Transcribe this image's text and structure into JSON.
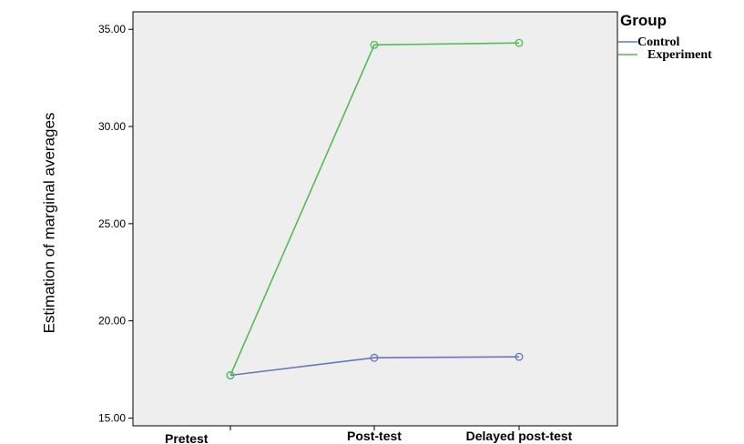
{
  "chart_data": {
    "type": "line",
    "categories": [
      "Pretest",
      "Post-test",
      "Delayed post-test"
    ],
    "ylabel": "Estimation of marginal averages",
    "ylim": [
      14.6,
      35.9
    ],
    "yticks": [
      "15.00",
      "20.00",
      "25.00",
      "30.00",
      "35.00"
    ],
    "ytick_values": [
      15,
      20,
      25,
      30,
      35
    ],
    "grid": false,
    "legend": {
      "title": "Group",
      "placement": "right"
    },
    "series": [
      {
        "name": "Control",
        "values": [
          17.2,
          18.1,
          18.15
        ],
        "color": "#6677bb"
      },
      {
        "name": "Experiment",
        "values": [
          17.2,
          34.2,
          34.3
        ],
        "color": "#55bb55"
      }
    ],
    "plot_background": "#eeeeee"
  }
}
